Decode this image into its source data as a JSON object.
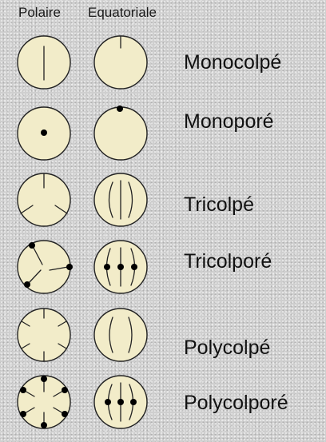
{
  "headers": {
    "polar": "Polaire",
    "equatorial": "Equatoriale"
  },
  "rows": [
    {
      "label": "Monocolpé"
    },
    {
      "label": "Monoporé"
    },
    {
      "label": "Tricolpé"
    },
    {
      "label": "Tricolporé"
    },
    {
      "label": "Polycolpé"
    },
    {
      "label": "Polycolporé"
    }
  ],
  "colors": {
    "grain_fill": "#f2ecc9",
    "outline": "#222222",
    "pore": "#000000"
  }
}
